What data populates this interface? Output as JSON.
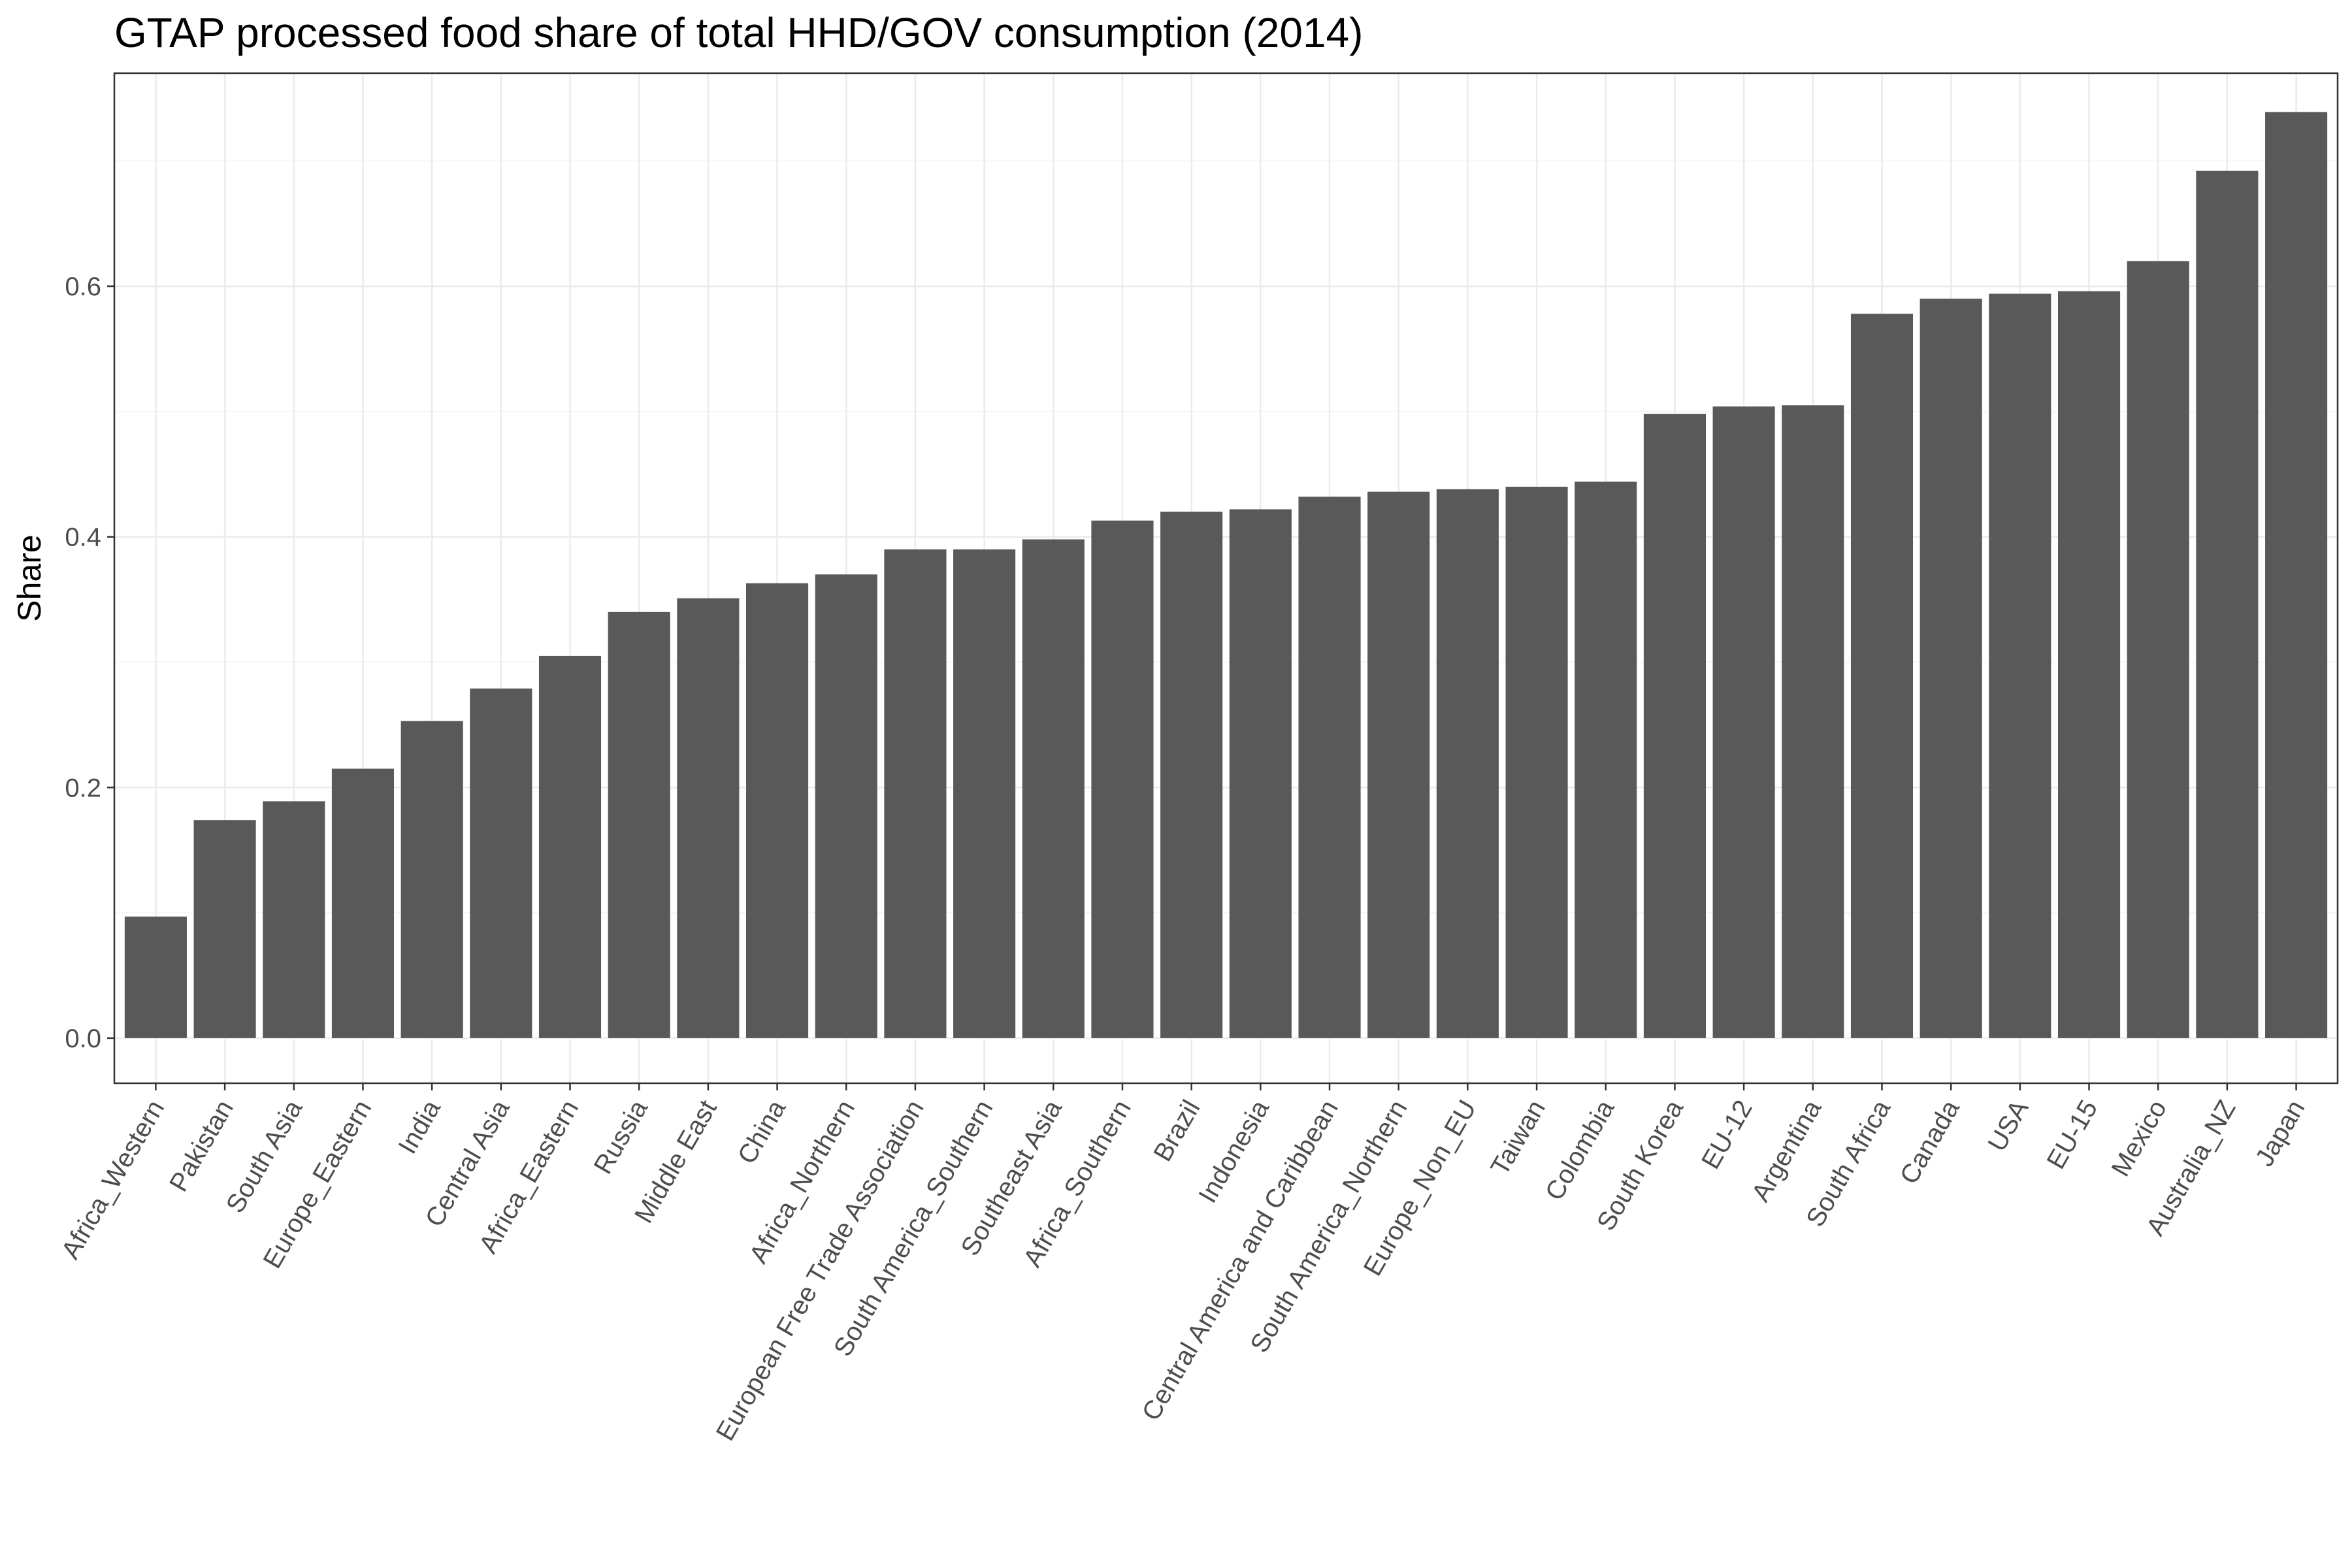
{
  "chart_data": {
    "type": "bar",
    "title": "GTAP processed food share of total HHD/GOV consumption (2014)",
    "xlabel": "",
    "ylabel": "Share",
    "ylim": [
      -0.036,
      0.77
    ],
    "yticks": [
      0.0,
      0.2,
      0.4,
      0.6
    ],
    "ytick_labels": [
      "0.0",
      "0.2",
      "0.4",
      "0.6"
    ],
    "grid": true,
    "legend": "none",
    "bar_color": "#595959",
    "panel_border_color": "#333333",
    "grid_major_color": "#ebebeb",
    "grid_minor_color": "#f5f5f5",
    "categories": [
      "Africa_Western",
      "Pakistan",
      "South Asia",
      "Europe_Eastern",
      "India",
      "Central Asia",
      "Africa_Eastern",
      "Russia",
      "Middle East",
      "China",
      "Africa_Northern",
      "European Free Trade Association",
      "South America_Southern",
      "Southeast Asia",
      "Africa_Southern",
      "Brazil",
      "Indonesia",
      "Central America and Caribbean",
      "South America_Northern",
      "Europe_Non_EU",
      "Taiwan",
      "Colombia",
      "South Korea",
      "EU-12",
      "Argentina",
      "South Africa",
      "Canada",
      "USA",
      "EU-15",
      "Mexico",
      "Australia_NZ",
      "Japan"
    ],
    "values": [
      0.097,
      0.174,
      0.189,
      0.215,
      0.253,
      0.279,
      0.305,
      0.34,
      0.351,
      0.363,
      0.37,
      0.39,
      0.39,
      0.398,
      0.413,
      0.42,
      0.422,
      0.432,
      0.436,
      0.438,
      0.44,
      0.444,
      0.498,
      0.504,
      0.505,
      0.578,
      0.59,
      0.594,
      0.596,
      0.62,
      0.692,
      0.739
    ]
  }
}
